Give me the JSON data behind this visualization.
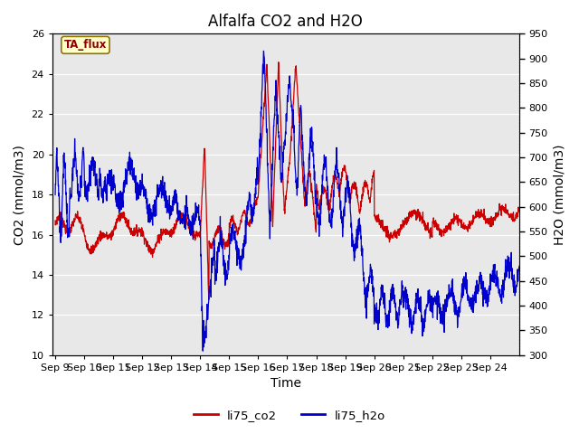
{
  "title": "Alfalfa CO2 and H2O",
  "xlabel": "Time",
  "ylabel_left": "CO2 (mmol/m3)",
  "ylabel_right": "H2O (mmol/m3)",
  "ylim_left": [
    10,
    26
  ],
  "ylim_right": [
    300,
    950
  ],
  "yticks_left": [
    10,
    12,
    14,
    16,
    18,
    20,
    22,
    24,
    26
  ],
  "yticks_right": [
    300,
    350,
    400,
    450,
    500,
    550,
    600,
    650,
    700,
    750,
    800,
    850,
    900,
    950
  ],
  "xtick_labels": [
    "Sep 9",
    "Sep 10",
    "Sep 11",
    "Sep 12",
    "Sep 13",
    "Sep 14",
    "Sep 15",
    "Sep 16",
    "Sep 17",
    "Sep 18",
    "Sep 19",
    "Sep 20",
    "Sep 21",
    "Sep 22",
    "Sep 23",
    "Sep 24"
  ],
  "color_co2": "#cc0000",
  "color_h2o": "#0000cc",
  "legend_label_co2": "li75_co2",
  "legend_label_h2o": "li75_h2o",
  "annotation_text": "TA_flux",
  "annotation_color": "#8b0000",
  "annotation_bg": "#ffffcc",
  "bg_color": "#e8e8e8",
  "title_fontsize": 12,
  "axis_fontsize": 10,
  "tick_fontsize": 8,
  "line_width": 0.9
}
